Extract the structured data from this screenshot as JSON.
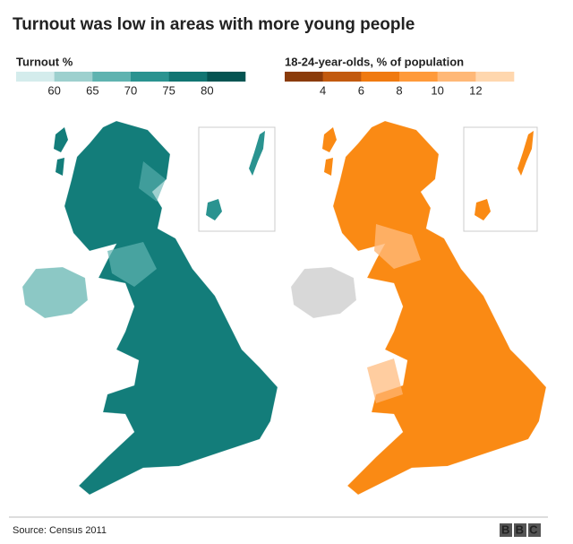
{
  "header": {
    "title": "Turnout was low in areas with more young people"
  },
  "legends": [
    {
      "title": "Turnout %",
      "colors": [
        "#d4ecec",
        "#9dd0ce",
        "#5fb3b0",
        "#2a9390",
        "#117572",
        "#045452"
      ],
      "ticks": [
        60,
        65,
        70,
        75,
        80
      ]
    },
    {
      "title": "18-24-year-olds, % of population",
      "colors": [
        "#8a3b0a",
        "#c25a0f",
        "#f07a10",
        "#ff9a3a",
        "#ffb877",
        "#ffd7ae"
      ],
      "ticks": [
        4,
        6,
        8,
        10,
        12
      ]
    }
  ],
  "footer": {
    "source": "Source: Census 2011",
    "logo": "BBC"
  }
}
